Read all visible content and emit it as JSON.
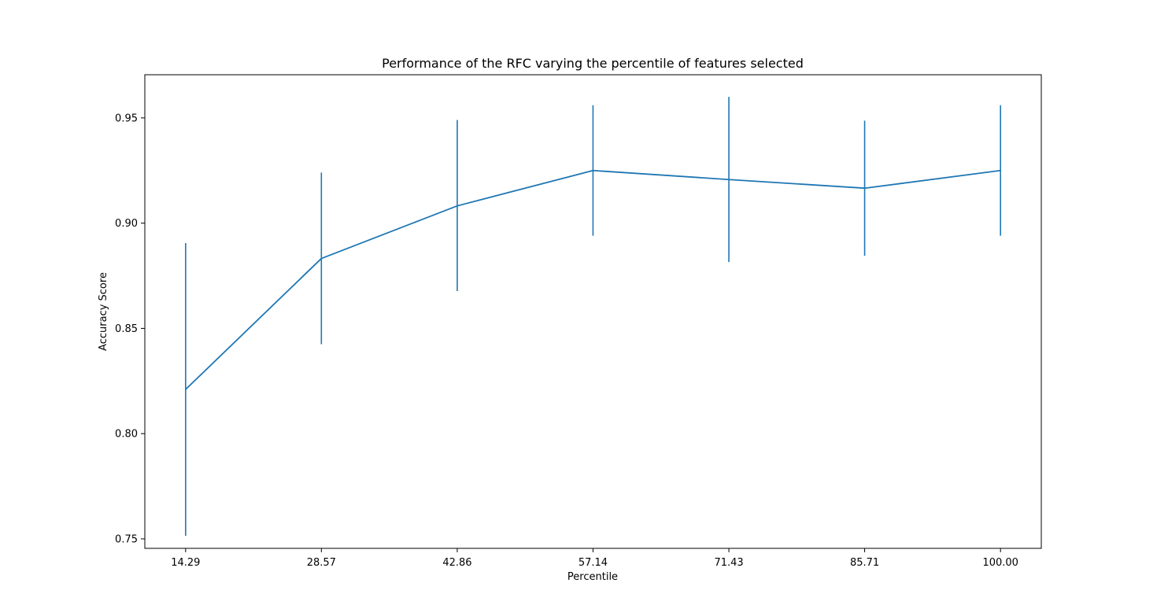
{
  "chart_data": {
    "type": "line",
    "title": "Performance of the RFC varying the percentile of features selected",
    "xlabel": "Percentile",
    "ylabel": "Accuracy Score",
    "x": [
      14.29,
      28.57,
      42.86,
      57.14,
      71.43,
      85.71,
      100.0
    ],
    "x_tick_labels": [
      "14.29",
      "28.57",
      "42.86",
      "57.14",
      "71.43",
      "85.71",
      "100.00"
    ],
    "y_ticks": [
      0.75,
      0.8,
      0.85,
      0.9,
      0.95
    ],
    "y_tick_labels": [
      "0.75",
      "0.80",
      "0.85",
      "0.90",
      "0.95"
    ],
    "xlim": [
      10.0,
      104.29
    ],
    "ylim": [
      0.7455,
      0.9705
    ],
    "grid": false,
    "series": [
      {
        "color": "#1f77b4",
        "values": [
          0.821,
          0.8832,
          0.9082,
          0.925,
          0.9207,
          0.9166,
          0.925
        ],
        "error_lower": [
          0.7515,
          0.8425,
          0.8677,
          0.894,
          0.8815,
          0.8845,
          0.894
        ],
        "error_upper": [
          0.8905,
          0.924,
          0.949,
          0.956,
          0.96,
          0.9487,
          0.956
        ]
      }
    ]
  }
}
